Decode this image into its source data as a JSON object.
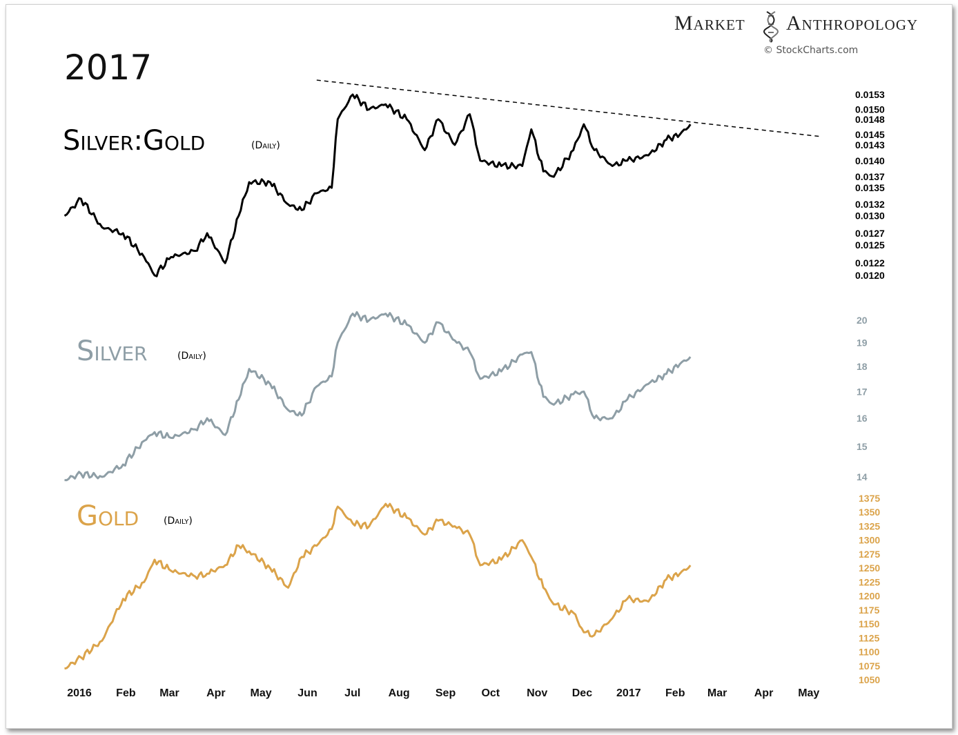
{
  "header": {
    "year_label": "2017",
    "brand_left": "Market",
    "brand_right": "Anthropology",
    "brand_icon": "dna-helix-icon",
    "copyright": "© StockCharts.com"
  },
  "colors": {
    "ratio": "#000000",
    "silver": "#8e9ea6",
    "gold": "#dba34a",
    "trendline": "#000000"
  },
  "x_axis": {
    "tick_labels": [
      "2016",
      "Feb",
      "Mar",
      "Apr",
      "May",
      "Jun",
      "Jul",
      "Aug",
      "Sep",
      "Oct",
      "Nov",
      "Dec",
      "2017",
      "Feb",
      "Mar",
      "Apr",
      "May"
    ],
    "range": [
      "2016-01-01",
      "2017-05-31"
    ]
  },
  "chart_data": [
    {
      "type": "line",
      "title": "Silver:Gold",
      "subtitle": "(Daily)",
      "scale": "log",
      "ylim": [
        0.012,
        0.0153
      ],
      "y_tick_labels": [
        "0.0153",
        "0.0150",
        "0.0148",
        "0.0145",
        "0.0143",
        "0.0140",
        "0.0137",
        "0.0135",
        "0.0132",
        "0.0130",
        "0.0127",
        "0.0125",
        "0.0122",
        "0.0120"
      ],
      "x": [
        "2016-01-04",
        "2016-01-15",
        "2016-01-29",
        "2016-02-12",
        "2016-02-26",
        "2016-03-04",
        "2016-03-15",
        "2016-03-31",
        "2016-04-08",
        "2016-04-20",
        "2016-04-29",
        "2016-05-06",
        "2016-05-20",
        "2016-06-01",
        "2016-06-10",
        "2016-06-20",
        "2016-06-30",
        "2016-07-04",
        "2016-07-14",
        "2016-07-25",
        "2016-08-05",
        "2016-08-19",
        "2016-08-31",
        "2016-09-09",
        "2016-09-20",
        "2016-09-30",
        "2016-10-07",
        "2016-10-21",
        "2016-11-04",
        "2016-11-10",
        "2016-11-18",
        "2016-11-25",
        "2016-12-08",
        "2016-12-15",
        "2016-12-22",
        "2017-01-03",
        "2017-01-13",
        "2017-01-27",
        "2017-02-08",
        "2017-02-17",
        "2017-02-24"
      ],
      "series": [
        {
          "values": [
            0.013,
            0.0133,
            0.0128,
            0.0127,
            0.0123,
            0.012,
            0.0123,
            0.0124,
            0.0127,
            0.0122,
            0.013,
            0.0136,
            0.0136,
            0.0132,
            0.0131,
            0.0134,
            0.0135,
            0.0148,
            0.0153,
            0.015,
            0.0151,
            0.0148,
            0.0142,
            0.0148,
            0.0143,
            0.0149,
            0.014,
            0.0139,
            0.0139,
            0.0146,
            0.0138,
            0.0137,
            0.0142,
            0.0147,
            0.0142,
            0.0139,
            0.014,
            0.0141,
            0.0144,
            0.0145,
            0.0147
          ]
        }
      ],
      "trendline": {
        "x": [
          "2016-06-20",
          "2017-05-22"
        ],
        "y": [
          0.0156,
          0.01446
        ],
        "style": "dashed"
      }
    },
    {
      "type": "line",
      "title": "Silver",
      "subtitle": "(Daily)",
      "scale": "log",
      "ylim": [
        14,
        20
      ],
      "y_tick_labels": [
        "20",
        "19",
        "18",
        "17",
        "16",
        "15",
        "14"
      ],
      "x": [
        "2016-01-04",
        "2016-01-15",
        "2016-01-29",
        "2016-02-12",
        "2016-02-26",
        "2016-03-04",
        "2016-03-15",
        "2016-03-31",
        "2016-04-08",
        "2016-04-20",
        "2016-04-29",
        "2016-05-06",
        "2016-05-20",
        "2016-06-01",
        "2016-06-10",
        "2016-06-20",
        "2016-06-30",
        "2016-07-04",
        "2016-07-14",
        "2016-07-25",
        "2016-08-05",
        "2016-08-19",
        "2016-08-31",
        "2016-09-09",
        "2016-09-20",
        "2016-09-30",
        "2016-10-07",
        "2016-10-21",
        "2016-11-04",
        "2016-11-10",
        "2016-11-18",
        "2016-11-25",
        "2016-12-08",
        "2016-12-15",
        "2016-12-22",
        "2017-01-03",
        "2017-01-13",
        "2017-01-27",
        "2017-02-08",
        "2017-02-17",
        "2017-02-24"
      ],
      "series": [
        {
          "values": [
            13.9,
            14.1,
            14.0,
            14.4,
            15.2,
            15.5,
            15.3,
            15.6,
            16.0,
            15.4,
            16.7,
            17.9,
            17.3,
            16.3,
            16.1,
            17.2,
            17.6,
            19.0,
            20.3,
            20.0,
            20.3,
            19.8,
            19.0,
            19.9,
            19.1,
            18.6,
            17.5,
            17.8,
            18.5,
            18.6,
            16.8,
            16.5,
            16.9,
            17.0,
            16.0,
            16.0,
            16.7,
            17.3,
            17.7,
            18.1,
            18.4
          ]
        }
      ]
    },
    {
      "type": "line",
      "title": "Gold",
      "subtitle": "(Daily)",
      "scale": "linear",
      "ylim": [
        1050,
        1375
      ],
      "y_tick_labels": [
        "1375",
        "1350",
        "1325",
        "1300",
        "1275",
        "1250",
        "1225",
        "1200",
        "1175",
        "1150",
        "1125",
        "1100",
        "1075",
        "1050"
      ],
      "x": [
        "2016-01-04",
        "2016-01-15",
        "2016-01-29",
        "2016-02-12",
        "2016-02-26",
        "2016-03-04",
        "2016-03-15",
        "2016-03-31",
        "2016-04-08",
        "2016-04-20",
        "2016-04-29",
        "2016-05-06",
        "2016-05-20",
        "2016-06-01",
        "2016-06-10",
        "2016-06-20",
        "2016-06-30",
        "2016-07-04",
        "2016-07-14",
        "2016-07-25",
        "2016-08-05",
        "2016-08-19",
        "2016-08-31",
        "2016-09-09",
        "2016-09-20",
        "2016-09-30",
        "2016-10-07",
        "2016-10-21",
        "2016-11-04",
        "2016-11-10",
        "2016-11-18",
        "2016-11-25",
        "2016-12-08",
        "2016-12-15",
        "2016-12-22",
        "2017-01-03",
        "2017-01-13",
        "2017-01-27",
        "2017-02-08",
        "2017-02-17",
        "2017-02-24"
      ],
      "series": [
        {
          "values": [
            1070,
            1090,
            1120,
            1195,
            1225,
            1265,
            1245,
            1235,
            1240,
            1255,
            1290,
            1280,
            1250,
            1215,
            1270,
            1290,
            1320,
            1360,
            1330,
            1325,
            1365,
            1340,
            1310,
            1335,
            1325,
            1310,
            1255,
            1265,
            1300,
            1270,
            1215,
            1185,
            1170,
            1135,
            1130,
            1160,
            1195,
            1190,
            1230,
            1240,
            1255
          ]
        }
      ]
    }
  ]
}
